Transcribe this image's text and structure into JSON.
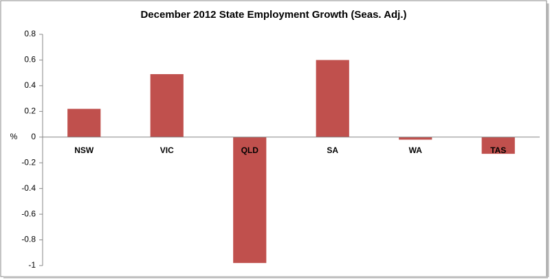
{
  "chart_data": {
    "type": "bar",
    "title": "December 2012 State Employment Growth (Seas. Adj.)",
    "y_label": "%",
    "categories": [
      "NSW",
      "VIC",
      "QLD",
      "SA",
      "WA",
      "TAS"
    ],
    "values": [
      0.22,
      0.49,
      -0.98,
      0.6,
      -0.02,
      -0.13
    ],
    "color": "#c0504d",
    "ylim": [
      -1,
      0.8
    ],
    "yticks": [
      -1,
      -0.8,
      -0.6,
      -0.4,
      -0.2,
      0,
      0.2,
      0.4,
      0.6,
      0.8
    ],
    "grid": false
  }
}
